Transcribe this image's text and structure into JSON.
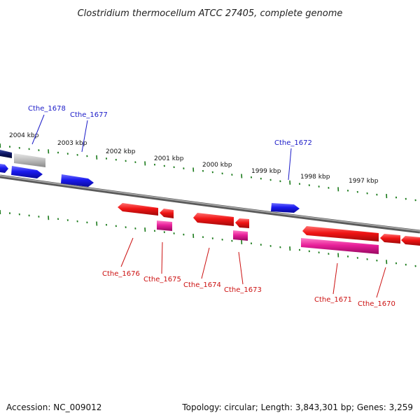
{
  "title": "Clostridium thermocellum ATCC 27405, complete genome",
  "footer": {
    "accession": "Accession: NC_009012",
    "summary": "Topology: circular; Length: 3,843,301 bp; Genes: 3,259"
  },
  "scale": {
    "unit": "kbp",
    "labels": [
      "2004 kbp",
      "2003 kbp",
      "2002 kbp",
      "2001 kbp",
      "2000 kbp",
      "1999 kbp",
      "1998 kbp",
      "1997 kbp"
    ]
  },
  "colors": {
    "forward_gene": "#1414e6",
    "reverse_gene": "#ee1111",
    "reverse_rna": "#e0208a",
    "gray_feature": "#b8b8b8",
    "navy_feature": "#0b1460",
    "forward_label": "#1a1ac8",
    "reverse_label": "#cc1111",
    "backbone": "#808080",
    "tick": "#1a7a1a"
  },
  "gene_labels": [
    {
      "id": "Cthe_1678",
      "strand": "forward"
    },
    {
      "id": "Cthe_1677",
      "strand": "forward"
    },
    {
      "id": "Cthe_1672",
      "strand": "forward"
    },
    {
      "id": "Cthe_1676",
      "strand": "reverse"
    },
    {
      "id": "Cthe_1675",
      "strand": "reverse"
    },
    {
      "id": "Cthe_1674",
      "strand": "reverse"
    },
    {
      "id": "Cthe_1673",
      "strand": "reverse"
    },
    {
      "id": "Cthe_1671",
      "strand": "reverse"
    },
    {
      "id": "Cthe_1670",
      "strand": "reverse"
    }
  ]
}
